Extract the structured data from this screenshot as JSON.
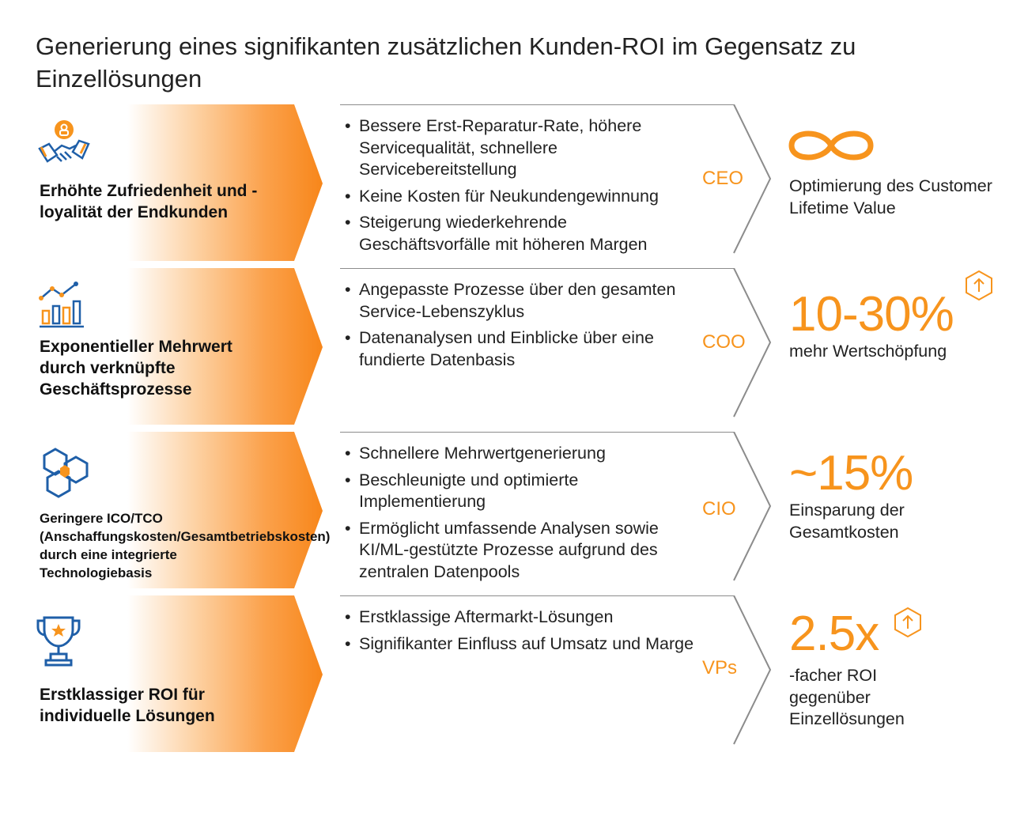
{
  "title": "Generierung eines signifikanten zusätzlichen Kunden-ROI im Gegensatz zu Einzellösungen",
  "colors": {
    "accent": "#f7941d",
    "icon_blue": "#1f5fa8",
    "outline": "#8c8c8c"
  },
  "rows": [
    {
      "icon": "handshake-icon",
      "label": "Erhöhte Zufriedenheit und -loyalität der Endkunden",
      "bullets": [
        "Bessere Erst-Reparatur-Rate, höhere Servicequalität, schnellere Servicebereitstellung",
        "Keine Kosten für Neukundengewinnung",
        "Steigerung wiederkehrende Geschäftsvorfälle mit höheren Margen"
      ],
      "role": "CEO",
      "metric_icon": "infinity-icon",
      "metric": "",
      "description": "Optimierung des Customer Lifetime Value"
    },
    {
      "icon": "bar-chart-icon",
      "label": "Exponentieller Mehrwert durch verknüpfte Geschäftsprozesse",
      "bullets": [
        "Angepasste Prozesse über den gesamten Service-Lebenszyklus",
        "Datenanalysen und Einblicke über eine fundierte Datenbasis"
      ],
      "role": "COO",
      "metric": "10-30%",
      "description": "mehr Wertschöpfung",
      "up_icon": "arrow-up-hexagon-icon"
    },
    {
      "icon": "hexagon-network-icon",
      "label": "Geringere ICO/TCO (Anschaffungskosten/Gesamtbetriebskosten) durch eine integrierte Technologiebasis",
      "bullets": [
        "Schnellere Mehrwertgenerierung",
        "Beschleunigte und optimierte Implementierung",
        "Ermöglicht umfassende Analysen sowie KI/ML-gestützte Prozesse aufgrund des zentralen Datenpools"
      ],
      "role": "CIO",
      "metric": "~15%",
      "description": "Einsparung der Gesamtkosten"
    },
    {
      "icon": "trophy-icon",
      "label": "Erstklassiger ROI für individuelle Lösungen",
      "bullets": [
        "Erstklassige Aftermarkt-Lösungen",
        "Signifikanter Einfluss auf Umsatz und Marge"
      ],
      "role": "VPs",
      "metric": "2.5x",
      "description": "-facher ROI gegenüber Einzellösungen",
      "up_icon": "arrow-up-hexagon-icon"
    }
  ]
}
